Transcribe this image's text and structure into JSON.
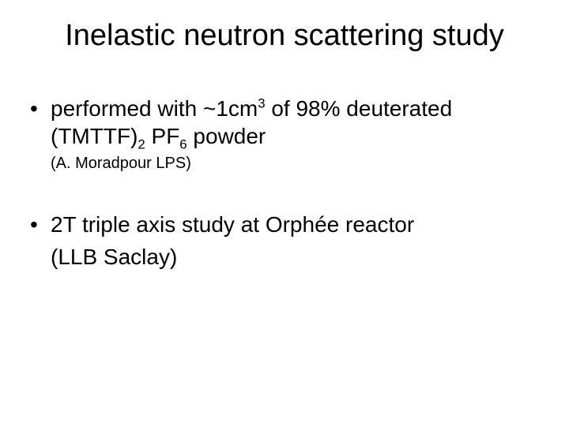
{
  "slide": {
    "background_color": "#ffffff",
    "text_color": "#000000",
    "title": {
      "text": "Inelastic neutron scattering study",
      "fontsize": 38,
      "weight": 400
    },
    "bullets": [
      {
        "marker": "•",
        "line1_pre": "performed with ~1cm",
        "line1_sup": "3",
        "line1_mid": " of 98% deuterated",
        "line2_pre": "(TMTTF)",
        "line2_sub1": "2",
        "line2_mid": " PF",
        "line2_sub2": "6",
        "line2_post": " powder",
        "attribution": "(A. Moradpour LPS)",
        "attribution_fontsize": 20,
        "body_fontsize": 28
      },
      {
        "marker": "•",
        "line1": "2T triple axis study at Orphée reactor",
        "line2": "(LLB Saclay)",
        "body_fontsize": 28
      }
    ]
  }
}
